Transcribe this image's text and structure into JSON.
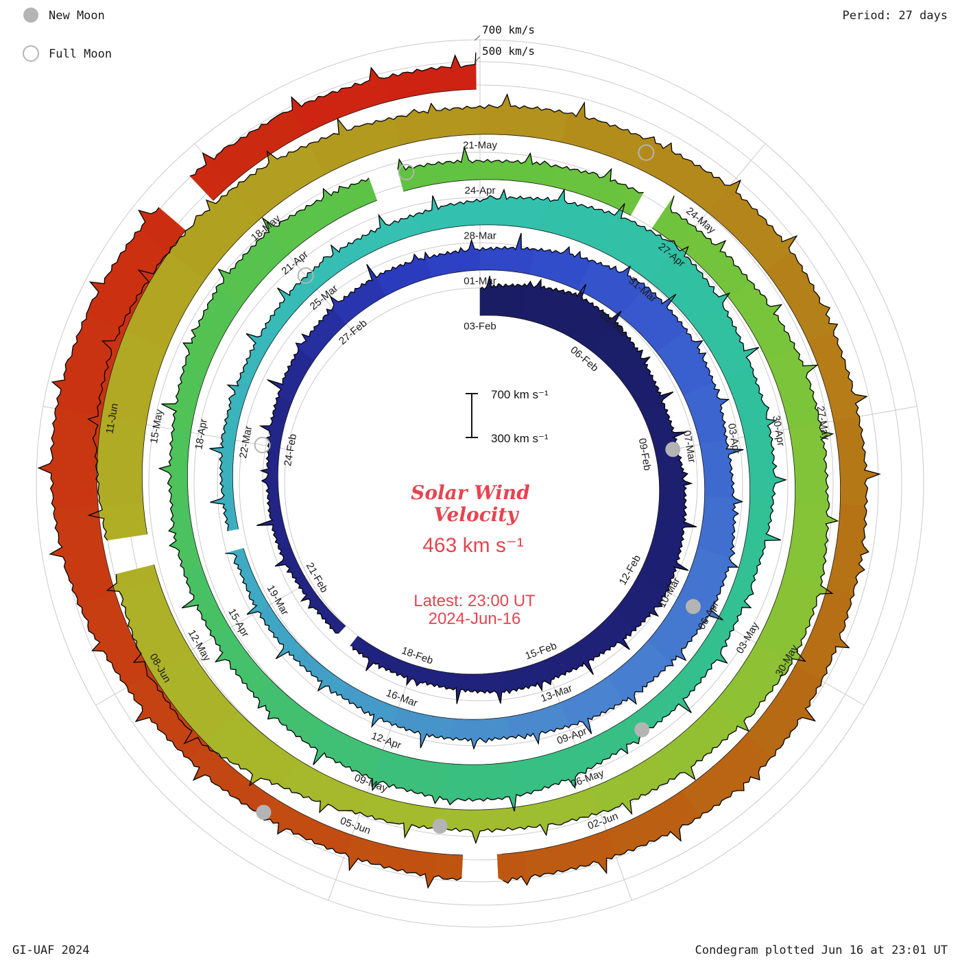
{
  "legend": {
    "new_moon_label": "New Moon",
    "full_moon_label": "Full Moon"
  },
  "top_right": {
    "period_label": "Period: 27 days"
  },
  "ring_scale_labels": {
    "outer": "700 km/s",
    "inner": "500 km/s"
  },
  "center": {
    "title_line1": "Solar Wind",
    "title_line2": "Velocity",
    "current_value": "463 km s⁻¹",
    "latest_line1": "Latest: 23:00 UT",
    "latest_line2": "2024-Jun-16",
    "scale_top_label": "700 km s⁻¹",
    "scale_bottom_label": "300 km s⁻¹"
  },
  "footer": {
    "left": "GI-UAF 2024",
    "right": "Condegram plotted Jun 16 at 23:01 UT"
  },
  "chart_data": {
    "type": "spiral-condegram",
    "title": "Solar Wind Velocity",
    "units": "km s⁻¹",
    "period_days": 27,
    "start_date": "2024-02-03",
    "latest": {
      "value_kms": 463,
      "time": "23:00 UT",
      "date": "2024-06-16"
    },
    "radial_scale_kms": {
      "reference_low": 300,
      "reference_high": 700
    },
    "ring_gridlines_kms": [
      500,
      700
    ],
    "daily_cadence_days": 1,
    "daily_values_kms": [
      480,
      560,
      620,
      580,
      520,
      470,
      440,
      480,
      520,
      540,
      500,
      460,
      430,
      420,
      400,
      380,
      360,
      350,
      340,
      345,
      350,
      360,
      380,
      420,
      450,
      440,
      430,
      450,
      480,
      540,
      620,
      590,
      540,
      500,
      520,
      560,
      580,
      550,
      510,
      480,
      450,
      430,
      410,
      390,
      370,
      360,
      355,
      350,
      360,
      370,
      390,
      400,
      420,
      440,
      470,
      540,
      620,
      650,
      580,
      520,
      490,
      460,
      430,
      420,
      440,
      460,
      510,
      560,
      580,
      540,
      490,
      460,
      440,
      420,
      410,
      430,
      470,
      520,
      540,
      480,
      440,
      430,
      450,
      470,
      490,
      510,
      530,
      540,
      560,
      600,
      620,
      580,
      530,
      490,
      460,
      440,
      450,
      550,
      700,
      680,
      620,
      650,
      700,
      720,
      680,
      620,
      560,
      520,
      500,
      520,
      540,
      560,
      540,
      510,
      490,
      480,
      500,
      540,
      560,
      540,
      510,
      480,
      460,
      450,
      440,
      460,
      520,
      600,
      650,
      680,
      640,
      580,
      540,
      510,
      463
    ],
    "tick_interval_days": 3,
    "tick_labels": [
      "03-Feb",
      "06-Feb",
      "09-Feb",
      "12-Feb",
      "15-Feb",
      "18-Feb",
      "21-Feb",
      "24-Feb",
      "27-Feb",
      "01-Mar",
      "04-Mar",
      "07-Mar",
      "10-Mar",
      "13-Mar",
      "16-Mar",
      "19-Mar",
      "22-Mar",
      "25-Mar",
      "28-Mar",
      "31-Mar",
      "03-Apr",
      "06-Apr",
      "09-Apr",
      "12-Apr",
      "15-Apr",
      "18-Apr",
      "21-Apr",
      "24-Apr",
      "27-Apr",
      "30-Apr",
      "03-May",
      "06-May",
      "09-May",
      "12-May",
      "15-May",
      "18-May",
      "21-May",
      "24-May",
      "27-May",
      "30-May",
      "02-Jun",
      "05-Jun",
      "08-Jun",
      "11-Jun"
    ],
    "new_moon_dates": [
      "2024-02-09",
      "2024-03-10",
      "2024-04-08",
      "2024-05-08",
      "2024-06-06"
    ],
    "full_moon_dates": [
      "2024-02-24",
      "2024-03-25",
      "2024-04-23",
      "2024-05-23"
    ],
    "data_gaps_days_from_start": [
      [
        16.4,
        16.75
      ],
      [
        46.1,
        46.45
      ],
      [
        79.5,
        79.9
      ],
      [
        83.2,
        83.55
      ],
      [
        100.2,
        100.6
      ],
      [
        121.3,
        121.7
      ],
      [
        131.3,
        131.75
      ]
    ],
    "color_scale_day_hex": [
      [
        0,
        "#1a1c63"
      ],
      [
        22,
        "#23268a"
      ],
      [
        26,
        "#2c3ec4"
      ],
      [
        32,
        "#3b62d0"
      ],
      [
        39,
        "#4b86cf"
      ],
      [
        45,
        "#3fa8c4"
      ],
      [
        52,
        "#35c0b4"
      ],
      [
        60,
        "#30c09b"
      ],
      [
        68,
        "#3abf7d"
      ],
      [
        75,
        "#4fc258"
      ],
      [
        81,
        "#63c33f"
      ],
      [
        88,
        "#83c438"
      ],
      [
        95,
        "#a3bc2e"
      ],
      [
        101,
        "#b0ad25"
      ],
      [
        106,
        "#b29c1f"
      ],
      [
        111,
        "#b4871a"
      ],
      [
        116,
        "#b57115"
      ],
      [
        121,
        "#bd5811"
      ],
      [
        126,
        "#c64012"
      ],
      [
        131,
        "#cb2e11"
      ],
      [
        135,
        "#ce2012"
      ]
    ],
    "moon_marker_colors": {
      "new": "#b4b4b4",
      "full_outline": "#b4b4b4"
    },
    "grid_color": "#c9c9c9"
  }
}
